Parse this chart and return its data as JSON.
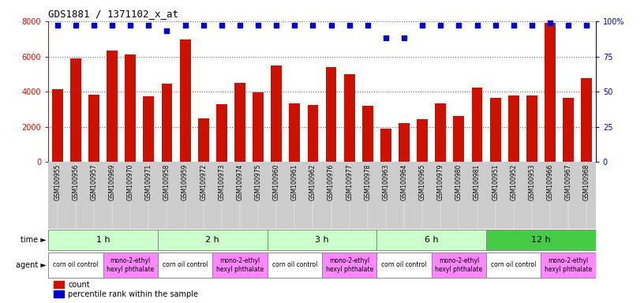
{
  "title": "GDS1881 / 1371102_x_at",
  "samples": [
    "GSM100955",
    "GSM100956",
    "GSM100957",
    "GSM100969",
    "GSM100970",
    "GSM100971",
    "GSM100958",
    "GSM100959",
    "GSM100972",
    "GSM100973",
    "GSM100974",
    "GSM100975",
    "GSM100960",
    "GSM100961",
    "GSM100962",
    "GSM100976",
    "GSM100977",
    "GSM100978",
    "GSM100963",
    "GSM100964",
    "GSM100965",
    "GSM100979",
    "GSM100980",
    "GSM100981",
    "GSM100951",
    "GSM100952",
    "GSM100953",
    "GSM100966",
    "GSM100967",
    "GSM100968"
  ],
  "counts": [
    4150,
    5900,
    3850,
    6350,
    6100,
    3750,
    4450,
    6950,
    2500,
    3300,
    4500,
    3950,
    5500,
    3350,
    3250,
    5400,
    5000,
    3200,
    1900,
    2200,
    2450,
    3350,
    2600,
    4250,
    3650,
    3800,
    3800,
    7900,
    3650,
    4750
  ],
  "percentiles": [
    97,
    97,
    97,
    97,
    97,
    97,
    93,
    97,
    97,
    97,
    97,
    97,
    97,
    97,
    97,
    97,
    97,
    97,
    88,
    88,
    97,
    97,
    97,
    97,
    97,
    97,
    97,
    99,
    97,
    97
  ],
  "time_groups": [
    {
      "label": "1 h",
      "start": 0,
      "end": 6,
      "color": "#ccffcc"
    },
    {
      "label": "2 h",
      "start": 6,
      "end": 12,
      "color": "#ccffcc"
    },
    {
      "label": "3 h",
      "start": 12,
      "end": 18,
      "color": "#ccffcc"
    },
    {
      "label": "6 h",
      "start": 18,
      "end": 24,
      "color": "#ccffcc"
    },
    {
      "label": "12 h",
      "start": 24,
      "end": 30,
      "color": "#44cc44"
    }
  ],
  "agent_groups": [
    {
      "label": "corn oil control",
      "start": 0,
      "end": 3,
      "color": "#ffffff"
    },
    {
      "label": "mono-2-ethyl\nhexyl phthalate",
      "start": 3,
      "end": 6,
      "color": "#ff88ff"
    },
    {
      "label": "corn oil control",
      "start": 6,
      "end": 9,
      "color": "#ffffff"
    },
    {
      "label": "mono-2-ethyl\nhexyl phthalate",
      "start": 9,
      "end": 12,
      "color": "#ff88ff"
    },
    {
      "label": "corn oil control",
      "start": 12,
      "end": 15,
      "color": "#ffffff"
    },
    {
      "label": "mono-2-ethyl\nhexyl phthalate",
      "start": 15,
      "end": 18,
      "color": "#ff88ff"
    },
    {
      "label": "corn oil control",
      "start": 18,
      "end": 21,
      "color": "#ffffff"
    },
    {
      "label": "mono-2-ethyl\nhexyl phthalate",
      "start": 21,
      "end": 24,
      "color": "#ff88ff"
    },
    {
      "label": "corn oil control",
      "start": 24,
      "end": 27,
      "color": "#ffffff"
    },
    {
      "label": "mono-2-ethyl\nhexyl phthalate",
      "start": 27,
      "end": 30,
      "color": "#ff88ff"
    }
  ],
  "bar_color": "#cc1100",
  "dot_color": "#0000cc",
  "ylim_left": [
    0,
    8000
  ],
  "ylim_right": [
    0,
    100
  ],
  "yticks_left": [
    0,
    2000,
    4000,
    6000,
    8000
  ],
  "yticks_right": [
    0,
    25,
    50,
    75,
    100
  ],
  "grid_color": "#666666",
  "tick_bg_color": "#cccccc",
  "main_bg_color": "#ffffff"
}
